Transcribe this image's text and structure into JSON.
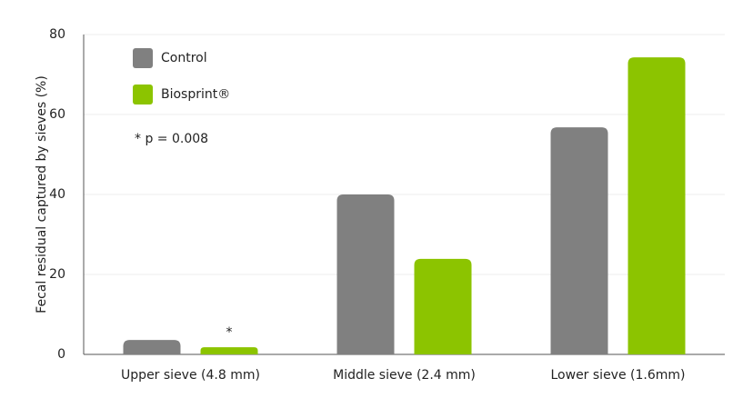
{
  "chart_data": {
    "type": "bar",
    "y_label": "Fecal residual captured by sieves (%)",
    "categories": [
      "Upper sieve (4.8 mm)",
      "Middle sieve (2.4 mm)",
      "Lower sieve (1.6mm)"
    ],
    "series": [
      {
        "name": "Control",
        "color": "#808080",
        "values": [
          3.6,
          40,
          56.8
        ]
      },
      {
        "name": "Biosprint®",
        "color": "#8cc400",
        "values": [
          1.8,
          23.9,
          74.3
        ]
      }
    ],
    "ylim": [
      0,
      80
    ],
    "yticks": [
      0,
      20,
      40,
      60,
      80
    ],
    "grid": true,
    "significance_marker": "*",
    "note": "* p = 0.008"
  }
}
